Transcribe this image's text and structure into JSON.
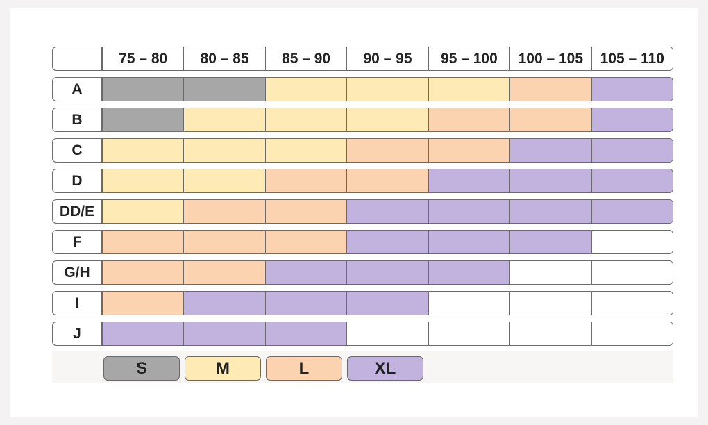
{
  "chart_data": {
    "type": "table",
    "columns": [
      "75 – 80",
      "80 – 85",
      "85 – 90",
      "90 – 95",
      "95 – 100",
      "100 – 105",
      "105 – 110"
    ],
    "rows": [
      {
        "label": "A",
        "sizes": [
          "S",
          "S",
          "M",
          "M",
          "M",
          "L",
          "XL"
        ]
      },
      {
        "label": "B",
        "sizes": [
          "S",
          "M",
          "M",
          "M",
          "L",
          "L",
          "XL"
        ]
      },
      {
        "label": "C",
        "sizes": [
          "M",
          "M",
          "M",
          "L",
          "L",
          "XL",
          "XL"
        ]
      },
      {
        "label": "D",
        "sizes": [
          "M",
          "M",
          "L",
          "L",
          "XL",
          "XL",
          "XL"
        ]
      },
      {
        "label": "DD/E",
        "sizes": [
          "M",
          "L",
          "L",
          "XL",
          "XL",
          "XL",
          "XL"
        ]
      },
      {
        "label": "F",
        "sizes": [
          "L",
          "L",
          "L",
          "XL",
          "XL",
          "XL",
          ""
        ]
      },
      {
        "label": "G/H",
        "sizes": [
          "L",
          "L",
          "XL",
          "XL",
          "XL",
          "",
          ""
        ]
      },
      {
        "label": "I",
        "sizes": [
          "L",
          "XL",
          "XL",
          "XL",
          "",
          "",
          ""
        ]
      },
      {
        "label": "J",
        "sizes": [
          "XL",
          "XL",
          "XL",
          "",
          "",
          "",
          ""
        ]
      }
    ],
    "legend": [
      {
        "label": "S",
        "color": "#a7a7a7"
      },
      {
        "label": "M",
        "color": "#fdeab5"
      },
      {
        "label": "L",
        "color": "#fcd3b1"
      },
      {
        "label": "XL",
        "color": "#c1b3de"
      }
    ],
    "empty_color": "#ffffff"
  }
}
